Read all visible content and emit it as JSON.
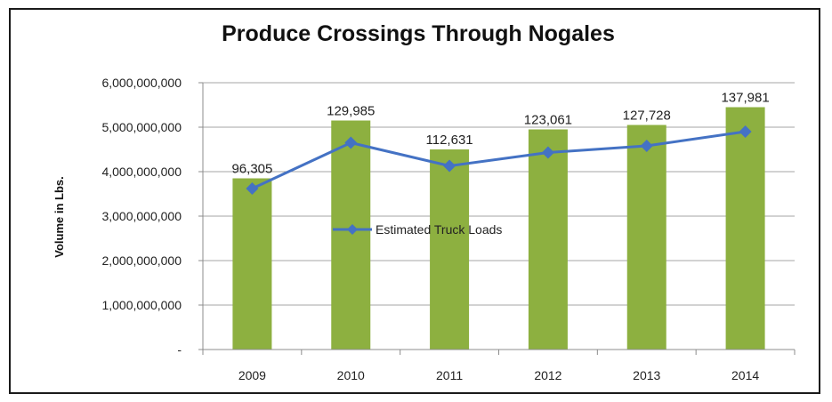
{
  "chart_data": {
    "type": "bar",
    "title": "Produce Crossings Through Nogales",
    "xlabel": "",
    "ylabel": "Volume in Lbs.",
    "categories": [
      "2009",
      "2010",
      "2011",
      "2012",
      "2013",
      "2014"
    ],
    "ylim": [
      0,
      6000000000
    ],
    "yticks": [
      0,
      1000000000,
      2000000000,
      3000000000,
      4000000000,
      5000000000,
      6000000000
    ],
    "ytick_labels": [
      "-",
      "1,000,000,000",
      "2,000,000,000",
      "3,000,000,000",
      "4,000,000,000",
      "5,000,000,000",
      "6,000,000,000"
    ],
    "grid": true,
    "legend_position": "center",
    "series": [
      {
        "type": "bar",
        "values": [
          3850000000,
          5150000000,
          4500000000,
          4950000000,
          5050000000,
          5450000000
        ],
        "color": "#8db040"
      },
      {
        "type": "line",
        "name": "Estimated Truck Loads",
        "values": [
          96305,
          129985,
          112631,
          123061,
          127728,
          137981
        ],
        "labels": [
          "96,305",
          "129,985",
          "112,631",
          "123,061",
          "127,728",
          "137,981"
        ],
        "plotted_on_volume_axis": [
          3620000000,
          4650000000,
          4130000000,
          4430000000,
          4580000000,
          4900000000
        ],
        "color": "#4472c4",
        "marker": "diamond"
      }
    ]
  }
}
